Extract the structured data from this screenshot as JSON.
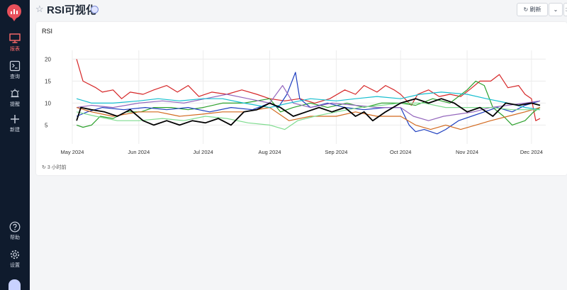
{
  "app": {
    "title": "RSI可视化"
  },
  "toolbar": {
    "refresh_label": "刷新"
  },
  "sidebar": {
    "items": [
      {
        "label": "报表",
        "icon": "monitor-icon",
        "active": true
      },
      {
        "label": "查询",
        "icon": "terminal-icon",
        "active": false
      },
      {
        "label": "提醒",
        "icon": "bell-icon",
        "active": false
      },
      {
        "label": "新建",
        "icon": "plus-icon",
        "active": false
      },
      {
        "label": "帮助",
        "icon": "help-icon",
        "active": false
      },
      {
        "label": "设置",
        "icon": "gear-icon",
        "active": false
      }
    ]
  },
  "panel": {
    "title": "RSI",
    "updated": "3 小时前"
  },
  "chart_data": {
    "type": "line",
    "title": "RSI",
    "xlabel": "",
    "ylabel": "",
    "x_range": [
      "2024-05-01",
      "2024-12-05"
    ],
    "ylim": [
      2,
      22
    ],
    "yticks": [
      5,
      10,
      15,
      20
    ],
    "xticks": [
      {
        "date": "2024-05-01",
        "label": "May 2024"
      },
      {
        "date": "2024-06-01",
        "label": "Jun 2024"
      },
      {
        "date": "2024-07-01",
        "label": "Jul 2024"
      },
      {
        "date": "2024-08-01",
        "label": "Aug 2024"
      },
      {
        "date": "2024-09-01",
        "label": "Sep 2024"
      },
      {
        "date": "2024-10-01",
        "label": "Oct 2024"
      },
      {
        "date": "2024-11-01",
        "label": "Nov 2024"
      },
      {
        "date": "2024-12-01",
        "label": "Dec 2024"
      }
    ],
    "grid": true,
    "series": [
      {
        "color": "#d62728",
        "points": [
          [
            "2024-05-03",
            20
          ],
          [
            "2024-05-06",
            15
          ],
          [
            "2024-05-12",
            13.5
          ],
          [
            "2024-05-15",
            12.5
          ],
          [
            "2024-05-20",
            13
          ],
          [
            "2024-05-24",
            11
          ],
          [
            "2024-05-28",
            12.5
          ],
          [
            "2024-06-03",
            12
          ],
          [
            "2024-06-08",
            13
          ],
          [
            "2024-06-14",
            14
          ],
          [
            "2024-06-19",
            12.5
          ],
          [
            "2024-06-24",
            14
          ],
          [
            "2024-06-29",
            11.5
          ],
          [
            "2024-07-05",
            12.5
          ],
          [
            "2024-07-12",
            12
          ],
          [
            "2024-07-19",
            13
          ],
          [
            "2024-07-26",
            12
          ],
          [
            "2024-08-01",
            11
          ],
          [
            "2024-08-08",
            10.5
          ],
          [
            "2024-08-15",
            11
          ],
          [
            "2024-08-22",
            10
          ],
          [
            "2024-08-29",
            11
          ],
          [
            "2024-09-05",
            13
          ],
          [
            "2024-09-10",
            12
          ],
          [
            "2024-09-14",
            14
          ],
          [
            "2024-09-20",
            12.5
          ],
          [
            "2024-09-24",
            14
          ],
          [
            "2024-09-28",
            13
          ],
          [
            "2024-10-01",
            12
          ],
          [
            "2024-10-06",
            9.5
          ],
          [
            "2024-10-09",
            12
          ],
          [
            "2024-10-14",
            13
          ],
          [
            "2024-10-19",
            11.5
          ],
          [
            "2024-10-24",
            12
          ],
          [
            "2024-10-29",
            11.5
          ],
          [
            "2024-11-02",
            13
          ],
          [
            "2024-11-07",
            15
          ],
          [
            "2024-11-12",
            15
          ],
          [
            "2024-11-16",
            16.5
          ],
          [
            "2024-11-20",
            13.5
          ],
          [
            "2024-11-25",
            14
          ],
          [
            "2024-11-28",
            12
          ],
          [
            "2024-12-01",
            11
          ],
          [
            "2024-12-03",
            6
          ],
          [
            "2024-12-05",
            6.5
          ]
        ]
      },
      {
        "color": "#2ca02c",
        "points": [
          [
            "2024-05-03",
            5
          ],
          [
            "2024-05-06",
            4.5
          ],
          [
            "2024-05-10",
            5
          ],
          [
            "2024-05-14",
            7
          ],
          [
            "2024-05-20",
            6.5
          ],
          [
            "2024-05-26",
            8
          ],
          [
            "2024-06-02",
            8
          ],
          [
            "2024-06-08",
            9
          ],
          [
            "2024-06-16",
            9
          ],
          [
            "2024-06-24",
            8.5
          ],
          [
            "2024-07-01",
            9
          ],
          [
            "2024-07-10",
            10
          ],
          [
            "2024-07-20",
            10
          ],
          [
            "2024-08-01",
            11
          ],
          [
            "2024-08-06",
            8
          ],
          [
            "2024-08-12",
            9
          ],
          [
            "2024-08-20",
            10
          ],
          [
            "2024-08-28",
            9
          ],
          [
            "2024-09-06",
            10
          ],
          [
            "2024-09-14",
            9
          ],
          [
            "2024-09-22",
            10
          ],
          [
            "2024-10-01",
            10
          ],
          [
            "2024-10-08",
            9.5
          ],
          [
            "2024-10-16",
            11
          ],
          [
            "2024-10-24",
            10
          ],
          [
            "2024-11-01",
            13
          ],
          [
            "2024-11-05",
            15
          ],
          [
            "2024-11-09",
            14
          ],
          [
            "2024-11-13",
            9
          ],
          [
            "2024-11-18",
            7
          ],
          [
            "2024-11-22",
            5
          ],
          [
            "2024-11-28",
            6
          ],
          [
            "2024-12-02",
            8
          ],
          [
            "2024-12-05",
            9
          ]
        ]
      },
      {
        "color": "#1f3fbf",
        "points": [
          [
            "2024-05-03",
            7
          ],
          [
            "2024-05-08",
            8
          ],
          [
            "2024-05-15",
            9
          ],
          [
            "2024-05-25",
            8.5
          ],
          [
            "2024-06-04",
            9
          ],
          [
            "2024-06-14",
            8.5
          ],
          [
            "2024-06-24",
            9
          ],
          [
            "2024-07-04",
            8
          ],
          [
            "2024-07-14",
            9
          ],
          [
            "2024-07-24",
            8.5
          ],
          [
            "2024-08-01",
            10
          ],
          [
            "2024-08-05",
            9
          ],
          [
            "2024-08-09",
            12
          ],
          [
            "2024-08-13",
            17
          ],
          [
            "2024-08-15",
            11
          ],
          [
            "2024-08-20",
            9
          ],
          [
            "2024-08-28",
            10
          ],
          [
            "2024-09-05",
            9
          ],
          [
            "2024-09-14",
            8.5
          ],
          [
            "2024-09-24",
            9
          ],
          [
            "2024-10-01",
            9
          ],
          [
            "2024-10-05",
            5
          ],
          [
            "2024-10-08",
            3.5
          ],
          [
            "2024-10-12",
            4
          ],
          [
            "2024-10-18",
            3
          ],
          [
            "2024-10-22",
            4
          ],
          [
            "2024-10-28",
            6
          ],
          [
            "2024-11-03",
            7
          ],
          [
            "2024-11-09",
            8
          ],
          [
            "2024-11-15",
            9
          ],
          [
            "2024-11-22",
            8
          ],
          [
            "2024-11-28",
            9.5
          ],
          [
            "2024-12-05",
            10.5
          ]
        ]
      },
      {
        "color": "#9467bd",
        "points": [
          [
            "2024-05-03",
            9
          ],
          [
            "2024-05-10",
            9.5
          ],
          [
            "2024-05-20",
            9
          ],
          [
            "2024-06-01",
            10
          ],
          [
            "2024-06-12",
            10.5
          ],
          [
            "2024-06-22",
            10
          ],
          [
            "2024-07-02",
            11
          ],
          [
            "2024-07-12",
            12
          ],
          [
            "2024-07-22",
            11
          ],
          [
            "2024-08-01",
            10
          ],
          [
            "2024-08-07",
            14
          ],
          [
            "2024-08-12",
            10
          ],
          [
            "2024-08-20",
            9
          ],
          [
            "2024-08-30",
            10
          ],
          [
            "2024-09-10",
            9.5
          ],
          [
            "2024-09-20",
            9
          ],
          [
            "2024-10-01",
            9
          ],
          [
            "2024-10-07",
            7
          ],
          [
            "2024-10-14",
            6
          ],
          [
            "2024-10-21",
            7
          ],
          [
            "2024-10-28",
            7.5
          ],
          [
            "2024-11-04",
            8
          ],
          [
            "2024-11-12",
            9
          ],
          [
            "2024-11-20",
            9.5
          ],
          [
            "2024-11-28",
            10
          ],
          [
            "2024-12-05",
            10.5
          ]
        ]
      },
      {
        "color": "#d2691e",
        "points": [
          [
            "2024-05-03",
            9
          ],
          [
            "2024-05-10",
            8
          ],
          [
            "2024-05-20",
            7
          ],
          [
            "2024-06-01",
            8
          ],
          [
            "2024-06-10",
            8
          ],
          [
            "2024-06-20",
            7
          ],
          [
            "2024-07-01",
            7.5
          ],
          [
            "2024-07-10",
            8
          ],
          [
            "2024-07-20",
            8
          ],
          [
            "2024-08-01",
            9
          ],
          [
            "2024-08-10",
            6
          ],
          [
            "2024-08-20",
            7
          ],
          [
            "2024-09-01",
            7
          ],
          [
            "2024-09-10",
            8
          ],
          [
            "2024-09-20",
            7
          ],
          [
            "2024-10-01",
            7
          ],
          [
            "2024-10-08",
            5
          ],
          [
            "2024-10-15",
            4
          ],
          [
            "2024-10-22",
            5
          ],
          [
            "2024-10-29",
            4
          ],
          [
            "2024-11-05",
            5
          ],
          [
            "2024-11-12",
            6
          ],
          [
            "2024-11-20",
            7
          ],
          [
            "2024-11-28",
            8
          ],
          [
            "2024-12-05",
            9
          ]
        ]
      },
      {
        "color": "#17becf",
        "points": [
          [
            "2024-05-03",
            11
          ],
          [
            "2024-05-10",
            10
          ],
          [
            "2024-05-20",
            10
          ],
          [
            "2024-06-01",
            10.5
          ],
          [
            "2024-06-10",
            11
          ],
          [
            "2024-06-20",
            10.5
          ],
          [
            "2024-07-01",
            11
          ],
          [
            "2024-07-10",
            11
          ],
          [
            "2024-07-20",
            10
          ],
          [
            "2024-08-01",
            9
          ],
          [
            "2024-08-10",
            10
          ],
          [
            "2024-08-20",
            11
          ],
          [
            "2024-09-01",
            10.5
          ],
          [
            "2024-09-10",
            11
          ],
          [
            "2024-09-20",
            11.5
          ],
          [
            "2024-10-01",
            11
          ],
          [
            "2024-10-10",
            12
          ],
          [
            "2024-10-20",
            12.5
          ],
          [
            "2024-11-01",
            12
          ],
          [
            "2024-11-10",
            11
          ],
          [
            "2024-11-20",
            10
          ],
          [
            "2024-11-28",
            9
          ],
          [
            "2024-12-05",
            8.5
          ]
        ]
      },
      {
        "color": "#7fdc8f",
        "points": [
          [
            "2024-05-03",
            8
          ],
          [
            "2024-05-12",
            7
          ],
          [
            "2024-05-22",
            6
          ],
          [
            "2024-06-01",
            6
          ],
          [
            "2024-06-12",
            6.5
          ],
          [
            "2024-06-22",
            6
          ],
          [
            "2024-07-02",
            7
          ],
          [
            "2024-07-12",
            6.5
          ],
          [
            "2024-07-22",
            5.5
          ],
          [
            "2024-08-01",
            5
          ],
          [
            "2024-08-08",
            4
          ],
          [
            "2024-08-14",
            6
          ],
          [
            "2024-08-22",
            7
          ],
          [
            "2024-09-01",
            8
          ],
          [
            "2024-09-12",
            9
          ],
          [
            "2024-09-22",
            9.5
          ],
          [
            "2024-10-01",
            10
          ],
          [
            "2024-10-12",
            10
          ],
          [
            "2024-10-22",
            9
          ],
          [
            "2024-11-01",
            9
          ],
          [
            "2024-11-12",
            9
          ],
          [
            "2024-11-22",
            8.5
          ],
          [
            "2024-12-05",
            8.5
          ]
        ]
      },
      {
        "color": "#000000",
        "points": [
          [
            "2024-05-03",
            6
          ],
          [
            "2024-05-05",
            9
          ],
          [
            "2024-05-10",
            8.5
          ],
          [
            "2024-05-16",
            8
          ],
          [
            "2024-05-22",
            7
          ],
          [
            "2024-05-28",
            8.5
          ],
          [
            "2024-06-03",
            6
          ],
          [
            "2024-06-08",
            5
          ],
          [
            "2024-06-14",
            6
          ],
          [
            "2024-06-20",
            5
          ],
          [
            "2024-06-26",
            6
          ],
          [
            "2024-07-02",
            5.5
          ],
          [
            "2024-07-08",
            6.5
          ],
          [
            "2024-07-14",
            5
          ],
          [
            "2024-07-20",
            8
          ],
          [
            "2024-07-26",
            8.5
          ],
          [
            "2024-08-01",
            10
          ],
          [
            "2024-08-06",
            9
          ],
          [
            "2024-08-12",
            7
          ],
          [
            "2024-08-18",
            8
          ],
          [
            "2024-08-24",
            9
          ],
          [
            "2024-08-30",
            8
          ],
          [
            "2024-09-05",
            9
          ],
          [
            "2024-09-10",
            7
          ],
          [
            "2024-09-14",
            8
          ],
          [
            "2024-09-18",
            6
          ],
          [
            "2024-09-24",
            8
          ],
          [
            "2024-10-01",
            10
          ],
          [
            "2024-10-08",
            11
          ],
          [
            "2024-10-14",
            10
          ],
          [
            "2024-10-20",
            11
          ],
          [
            "2024-10-26",
            10
          ],
          [
            "2024-11-01",
            8
          ],
          [
            "2024-11-07",
            9
          ],
          [
            "2024-11-13",
            7
          ],
          [
            "2024-11-19",
            10
          ],
          [
            "2024-11-25",
            9.5
          ],
          [
            "2024-12-01",
            10
          ],
          [
            "2024-12-05",
            9.5
          ]
        ]
      }
    ]
  }
}
